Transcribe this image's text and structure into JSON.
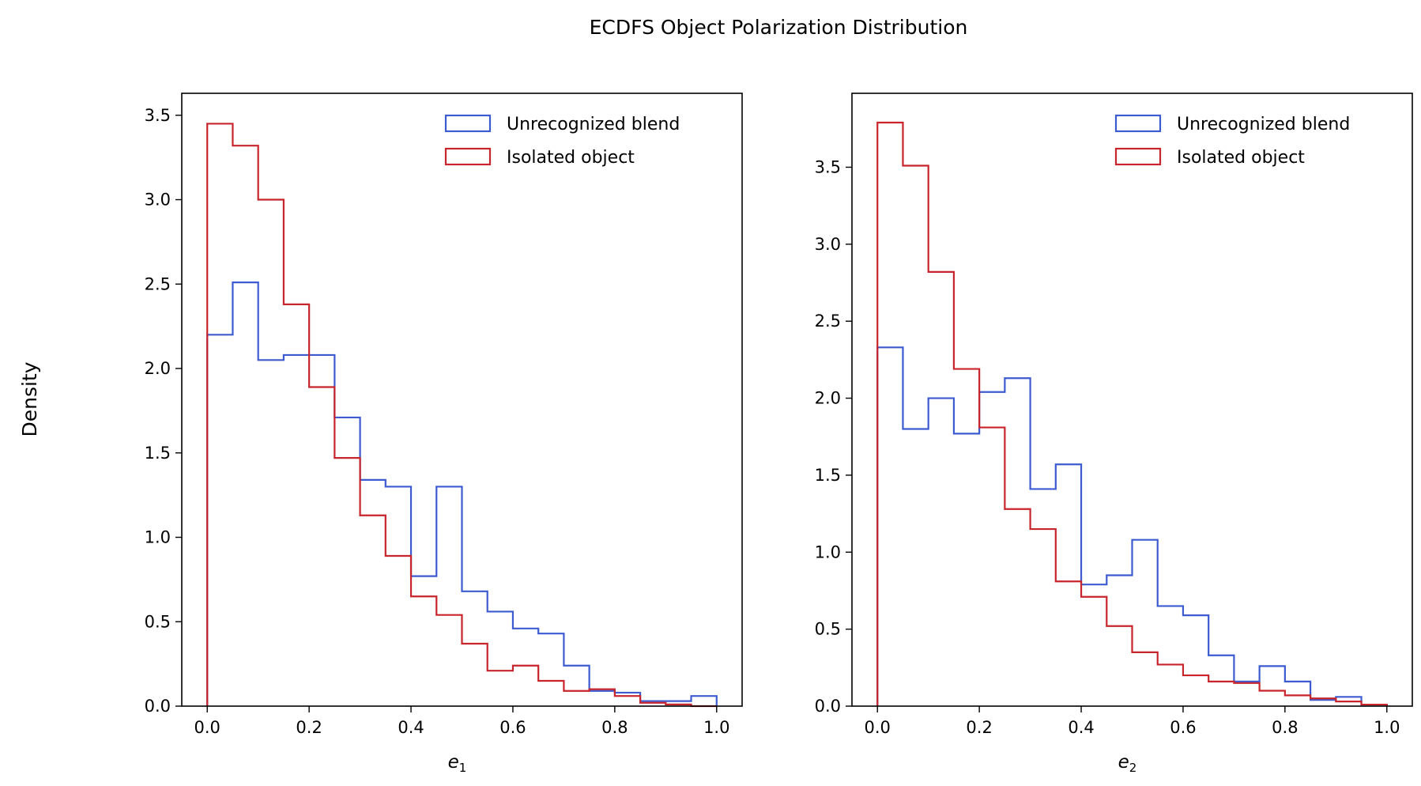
{
  "figure": {
    "suptitle": "ECDFS Object Polarization Distribution",
    "shared_ylabel": "Density"
  },
  "colors": {
    "unrecognized_blend": "#3c5bd1",
    "isolated_object": "#c8242b"
  },
  "chart_data": [
    {
      "type": "histogram-step",
      "title": "",
      "xlabel": "e",
      "xlabel_subscript": "1",
      "ylabel": "Density",
      "xlim": [
        -0.05,
        1.05
      ],
      "ylim": [
        0,
        3.63
      ],
      "xticks": [
        "0.0",
        "0.2",
        "0.4",
        "0.6",
        "0.8",
        "1.0"
      ],
      "yticks": [
        "0.0",
        "0.5",
        "1.0",
        "1.5",
        "2.0",
        "2.5",
        "3.0",
        "3.5"
      ],
      "legend_position": "upper-right",
      "bin_edges": [
        0.0,
        0.05,
        0.1,
        0.15,
        0.2,
        0.25,
        0.3,
        0.35,
        0.4,
        0.45,
        0.5,
        0.55,
        0.6,
        0.65,
        0.7,
        0.75,
        0.8,
        0.85,
        0.9,
        0.95,
        1.0
      ],
      "series": [
        {
          "name": "Unrecognized blend",
          "color_key": "unrecognized_blend",
          "values": [
            2.2,
            2.51,
            2.05,
            2.08,
            2.08,
            1.71,
            1.34,
            1.3,
            0.77,
            1.3,
            0.68,
            0.56,
            0.46,
            0.43,
            0.24,
            0.09,
            0.08,
            0.03,
            0.03,
            0.06
          ]
        },
        {
          "name": "Isolated object",
          "color_key": "isolated_object",
          "values": [
            3.45,
            3.32,
            3.0,
            2.38,
            1.89,
            1.47,
            1.13,
            0.89,
            0.65,
            0.54,
            0.37,
            0.21,
            0.24,
            0.15,
            0.09,
            0.1,
            0.06,
            0.02,
            0.01,
            0.0
          ]
        }
      ]
    },
    {
      "type": "histogram-step",
      "title": "",
      "xlabel": "e",
      "xlabel_subscript": "2",
      "ylabel": "Density",
      "xlim": [
        -0.05,
        1.05
      ],
      "ylim": [
        0,
        3.98
      ],
      "xticks": [
        "0.0",
        "0.2",
        "0.4",
        "0.6",
        "0.8",
        "1.0"
      ],
      "yticks": [
        "0.0",
        "0.5",
        "1.0",
        "1.5",
        "2.0",
        "2.5",
        "3.0",
        "3.5"
      ],
      "legend_position": "upper-right",
      "bin_edges": [
        0.0,
        0.05,
        0.1,
        0.15,
        0.2,
        0.25,
        0.3,
        0.35,
        0.4,
        0.45,
        0.5,
        0.55,
        0.6,
        0.65,
        0.7,
        0.75,
        0.8,
        0.85,
        0.9,
        0.95,
        1.0
      ],
      "series": [
        {
          "name": "Unrecognized blend",
          "color_key": "unrecognized_blend",
          "values": [
            2.33,
            1.8,
            2.0,
            1.77,
            2.04,
            2.13,
            1.41,
            1.57,
            0.79,
            0.85,
            1.08,
            0.65,
            0.59,
            0.33,
            0.16,
            0.26,
            0.16,
            0.04,
            0.06,
            0.01
          ]
        },
        {
          "name": "Isolated object",
          "color_key": "isolated_object",
          "values": [
            3.79,
            3.51,
            2.82,
            2.19,
            1.81,
            1.28,
            1.15,
            0.81,
            0.71,
            0.52,
            0.35,
            0.27,
            0.2,
            0.16,
            0.15,
            0.1,
            0.07,
            0.05,
            0.03,
            0.01
          ]
        }
      ]
    }
  ]
}
